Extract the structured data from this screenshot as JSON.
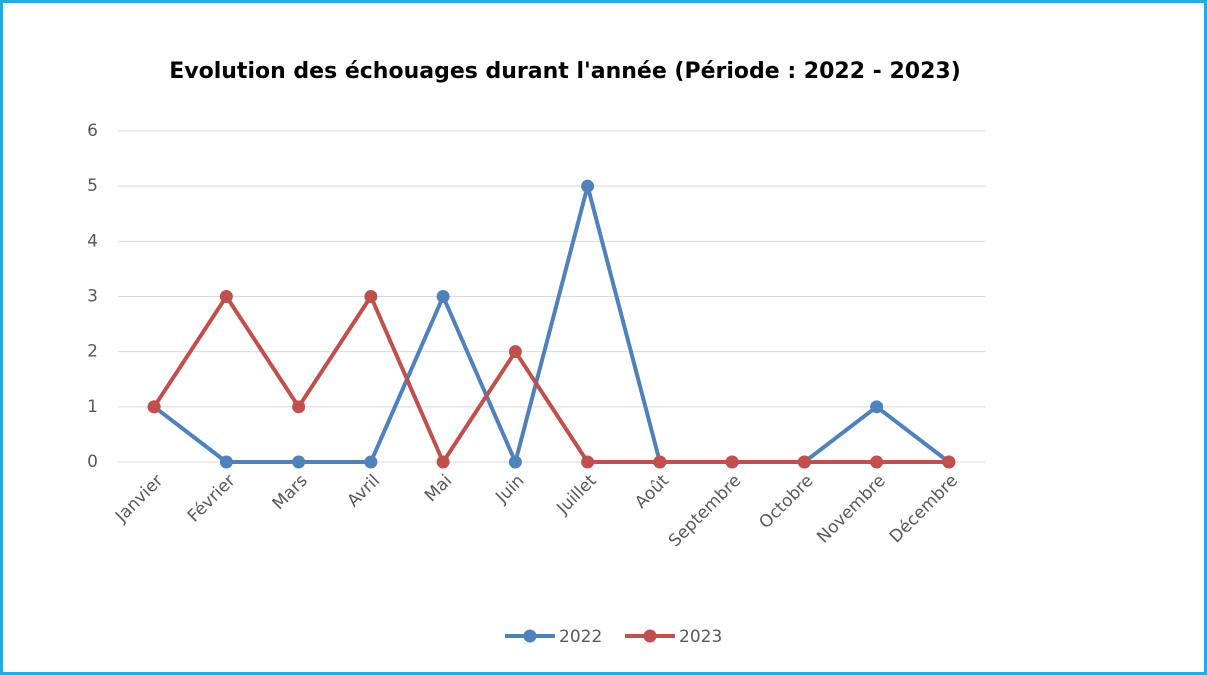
{
  "chart_data": {
    "type": "line",
    "title": "Evolution des échouages durant l'année (Période : 2022 - 2023)",
    "categories": [
      "Janvier",
      "Février",
      "Mars",
      "Avril",
      "Mai",
      "Juin",
      "Juillet",
      "Août",
      "Septembre",
      "Octobre",
      "Novembre",
      "Décembre"
    ],
    "series": [
      {
        "name": "2022",
        "color": "#4f81bd",
        "values": [
          1,
          0,
          0,
          0,
          3,
          0,
          5,
          0,
          0,
          0,
          1,
          0
        ]
      },
      {
        "name": "2023",
        "color": "#c0504d",
        "values": [
          1,
          3,
          1,
          3,
          0,
          2,
          0,
          0,
          0,
          0,
          0,
          0
        ]
      }
    ],
    "ylim": [
      0,
      6
    ],
    "yticks": [
      0,
      1,
      2,
      3,
      4,
      5,
      6
    ],
    "grid": true,
    "legend": "bottom"
  }
}
